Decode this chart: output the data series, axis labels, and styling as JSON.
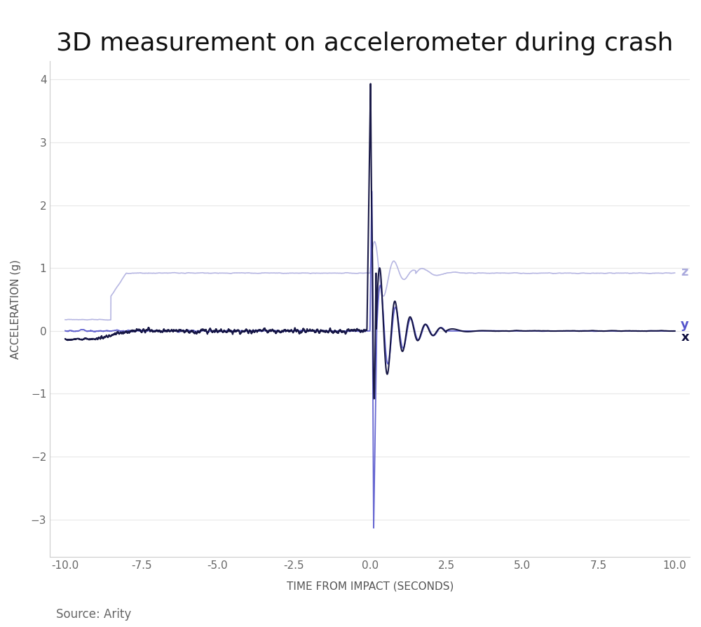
{
  "title": "3D measurement on accelerometer during crash",
  "xlabel": "TIME FROM IMPACT (SECONDS)",
  "ylabel": "ACCELERATION (g)",
  "source": "Source: Arity",
  "xlim": [
    -10.5,
    10.5
  ],
  "ylim": [
    -3.6,
    4.3
  ],
  "yticks": [
    -3,
    -2,
    -1,
    0,
    1,
    2,
    3,
    4
  ],
  "xticks": [
    -10.0,
    -7.5,
    -5.0,
    -2.5,
    0.0,
    2.5,
    5.0,
    7.5,
    10.0
  ],
  "color_x": "#0d0d3d",
  "color_y": "#5555cc",
  "color_z": "#aaaadd",
  "background_color": "#ffffff",
  "title_fontsize": 26,
  "label_fontsize": 11,
  "tick_fontsize": 11,
  "legend_fontsize": 13,
  "source_fontsize": 12
}
